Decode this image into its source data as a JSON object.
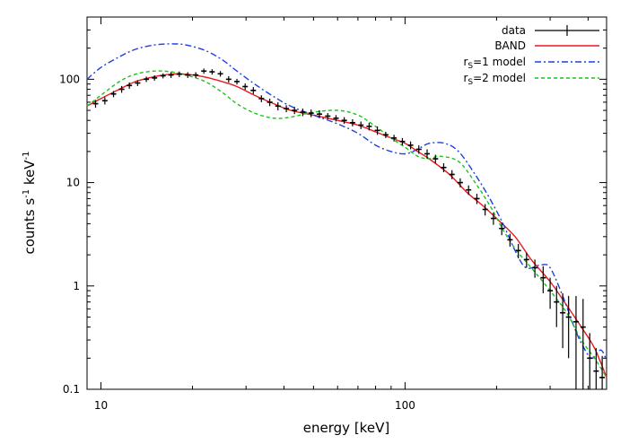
{
  "chart_data": {
    "type": "line",
    "xlabel": "energy [keV]",
    "ylabel": "counts s-1 keV-1",
    "xscale": "log",
    "yscale": "log",
    "xlim": [
      9,
      460
    ],
    "ylim": [
      0.1,
      400
    ],
    "grid": false,
    "legend_position": "top-right",
    "x_ticks": [
      {
        "label": "10",
        "value": 10
      },
      {
        "label": "100",
        "value": 100
      }
    ],
    "y_ticks": [
      {
        "label": "0.1",
        "value": 0.1
      },
      {
        "label": "1",
        "value": 1
      },
      {
        "label": "10",
        "value": 10
      },
      {
        "label": "100",
        "value": 100
      }
    ],
    "series": [
      {
        "name": "BAND",
        "color": "#e8191b",
        "style": "solid",
        "points": [
          [
            9,
            55
          ],
          [
            10,
            65
          ],
          [
            11.5,
            80
          ],
          [
            13,
            95
          ],
          [
            15,
            106
          ],
          [
            17,
            112
          ],
          [
            19,
            112
          ],
          [
            22,
            105
          ],
          [
            25,
            95
          ],
          [
            28,
            85
          ],
          [
            32,
            70
          ],
          [
            37,
            58
          ],
          [
            42,
            50
          ],
          [
            50,
            45
          ],
          [
            60,
            40
          ],
          [
            70,
            36
          ],
          [
            80,
            31
          ],
          [
            90,
            27
          ],
          [
            100,
            24
          ],
          [
            110,
            20
          ],
          [
            120,
            17
          ],
          [
            140,
            12
          ],
          [
            160,
            8
          ],
          [
            180,
            6
          ],
          [
            200,
            4.5
          ],
          [
            230,
            3
          ],
          [
            260,
            1.8
          ],
          [
            300,
            1.1
          ],
          [
            340,
            0.65
          ],
          [
            380,
            0.4
          ],
          [
            420,
            0.25
          ],
          [
            460,
            0.13
          ]
        ]
      },
      {
        "name": "r_S=1 model",
        "color": "#1f3ee0",
        "style": "dashdot",
        "points": [
          [
            9,
            100
          ],
          [
            10,
            130
          ],
          [
            11.5,
            165
          ],
          [
            13,
            195
          ],
          [
            15,
            215
          ],
          [
            17,
            220
          ],
          [
            19,
            215
          ],
          [
            22,
            190
          ],
          [
            25,
            155
          ],
          [
            28,
            120
          ],
          [
            32,
            90
          ],
          [
            37,
            68
          ],
          [
            42,
            55
          ],
          [
            50,
            45
          ],
          [
            60,
            37
          ],
          [
            70,
            30
          ],
          [
            80,
            23
          ],
          [
            90,
            20
          ],
          [
            100,
            19
          ],
          [
            110,
            21
          ],
          [
            120,
            24
          ],
          [
            135,
            24
          ],
          [
            150,
            20
          ],
          [
            170,
            12
          ],
          [
            190,
            7
          ],
          [
            210,
            4
          ],
          [
            230,
            2.2
          ],
          [
            250,
            1.5
          ],
          [
            280,
            1.6
          ],
          [
            300,
            1.5
          ],
          [
            330,
            0.8
          ],
          [
            360,
            0.4
          ],
          [
            380,
            0.28
          ],
          [
            410,
            0.2
          ],
          [
            440,
            0.24
          ],
          [
            460,
            0.19
          ]
        ]
      },
      {
        "name": "r_S=2 model",
        "color": "#18c418",
        "style": "dashed",
        "points": [
          [
            9,
            55
          ],
          [
            10,
            70
          ],
          [
            11.5,
            95
          ],
          [
            13,
            112
          ],
          [
            15,
            120
          ],
          [
            17,
            118
          ],
          [
            19,
            110
          ],
          [
            22,
            95
          ],
          [
            25,
            75
          ],
          [
            28,
            58
          ],
          [
            32,
            47
          ],
          [
            37,
            42
          ],
          [
            42,
            43
          ],
          [
            50,
            48
          ],
          [
            60,
            50
          ],
          [
            70,
            45
          ],
          [
            80,
            35
          ],
          [
            90,
            27
          ],
          [
            100,
            22
          ],
          [
            110,
            18
          ],
          [
            120,
            17
          ],
          [
            130,
            18
          ],
          [
            150,
            16
          ],
          [
            170,
            10
          ],
          [
            190,
            6
          ],
          [
            210,
            3.5
          ],
          [
            230,
            2.3
          ],
          [
            260,
            1.5
          ],
          [
            300,
            0.9
          ],
          [
            340,
            0.55
          ],
          [
            380,
            0.3
          ],
          [
            420,
            0.2
          ],
          [
            460,
            0.13
          ]
        ]
      }
    ],
    "data_series": {
      "name": "data",
      "color": "#000000",
      "points": [
        [
          9.6,
          58,
          5
        ],
        [
          10.3,
          62,
          5
        ],
        [
          11,
          72,
          5
        ],
        [
          11.7,
          80,
          6
        ],
        [
          12.4,
          87,
          6
        ],
        [
          13.2,
          92,
          6
        ],
        [
          14.1,
          100,
          6
        ],
        [
          15,
          103,
          6
        ],
        [
          16,
          108,
          6
        ],
        [
          17,
          110,
          7
        ],
        [
          18.1,
          112,
          7
        ],
        [
          19.3,
          110,
          7
        ],
        [
          20.5,
          110,
          7
        ],
        [
          21.8,
          120,
          7
        ],
        [
          23.2,
          118,
          7
        ],
        [
          24.7,
          113,
          7
        ],
        [
          26.3,
          100,
          7
        ],
        [
          28,
          95,
          6
        ],
        [
          29.8,
          85,
          6
        ],
        [
          31.7,
          78,
          6
        ],
        [
          33.7,
          65,
          5
        ],
        [
          35.9,
          60,
          5
        ],
        [
          38.2,
          55,
          5
        ],
        [
          40.7,
          52,
          4
        ],
        [
          43.3,
          50,
          4
        ],
        [
          46.1,
          48,
          4
        ],
        [
          49.1,
          47,
          4
        ],
        [
          52.3,
          46,
          4
        ],
        [
          55.7,
          44,
          3
        ],
        [
          59.3,
          42,
          3
        ],
        [
          63.1,
          40,
          3
        ],
        [
          67.2,
          38,
          3
        ],
        [
          71.6,
          36,
          3
        ],
        [
          76.2,
          35,
          3
        ],
        [
          81.1,
          32,
          3
        ],
        [
          86.4,
          29,
          2
        ],
        [
          92,
          27,
          2
        ],
        [
          98,
          25,
          2
        ],
        [
          104.3,
          23,
          2
        ],
        [
          111,
          21,
          2
        ],
        [
          118.2,
          19,
          2
        ],
        [
          125.9,
          17,
          1.6
        ],
        [
          134,
          14,
          1.4
        ],
        [
          142.7,
          12,
          1.2
        ],
        [
          151.9,
          10,
          1
        ],
        [
          161.8,
          8.5,
          0.9
        ],
        [
          172.3,
          7,
          0.8
        ],
        [
          183.4,
          5.5,
          0.7
        ],
        [
          195.3,
          4.5,
          0.6
        ],
        [
          208,
          3.6,
          0.5
        ],
        [
          221.4,
          2.8,
          0.4
        ],
        [
          235.8,
          2.2,
          0.35
        ],
        [
          251,
          1.8,
          0.3
        ],
        [
          267.3,
          1.5,
          0.3
        ],
        [
          284.6,
          1.2,
          0.35
        ],
        [
          300,
          0.9,
          0.3
        ],
        [
          315,
          0.7,
          0.3
        ],
        [
          330,
          0.55,
          0.3
        ],
        [
          345,
          0.5,
          0.3
        ],
        [
          365,
          0.45,
          0.35
        ],
        [
          385,
          0.4,
          0.35
        ],
        [
          405,
          0.2,
          0.15
        ],
        [
          425,
          0.15,
          0.1
        ],
        [
          445,
          0.13,
          0.08
        ]
      ]
    }
  },
  "legend": {
    "items": [
      {
        "label": "data",
        "series": "data"
      },
      {
        "label": "BAND",
        "series": "BAND"
      },
      {
        "label_main": "r",
        "label_sub": "S",
        "label_tail": "=1 model",
        "series": "r_S=1 model"
      },
      {
        "label_main": "r",
        "label_sub": "S",
        "label_tail": "=2 model",
        "series": "r_S=2 model"
      }
    ]
  },
  "axis_text": {
    "ylabel_main": "counts s",
    "ylabel_sup1": "-1",
    "ylabel_mid": " keV",
    "ylabel_sup2": "-1",
    "xlabel": "energy [keV]"
  }
}
